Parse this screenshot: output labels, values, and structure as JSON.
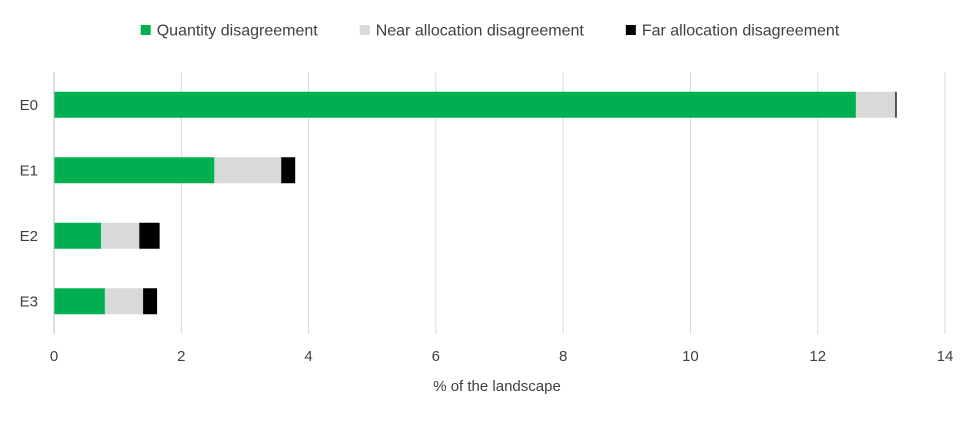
{
  "chart_data": {
    "type": "bar",
    "orientation": "horizontal",
    "stacked": true,
    "categories": [
      "E0",
      "E1",
      "E2",
      "E3"
    ],
    "series": [
      {
        "name": "Quantity disagreement",
        "color": "#00b050",
        "values": [
          12.6,
          2.52,
          0.74,
          0.8
        ]
      },
      {
        "name": "Near allocation disagreement",
        "color": "#d9d9d9",
        "values": [
          0.62,
          1.05,
          0.6,
          0.6
        ]
      },
      {
        "name": "Far allocation disagreement",
        "color": "#000000",
        "values": [
          0.02,
          0.22,
          0.32,
          0.22
        ]
      }
    ],
    "xlabel": "% of the landscape",
    "ylabel": "",
    "xlim": [
      0,
      14
    ],
    "xticks": [
      "0",
      "2",
      "4",
      "6",
      "8",
      "10",
      "12",
      "14"
    ],
    "grid": "vertical",
    "legend": "top"
  }
}
